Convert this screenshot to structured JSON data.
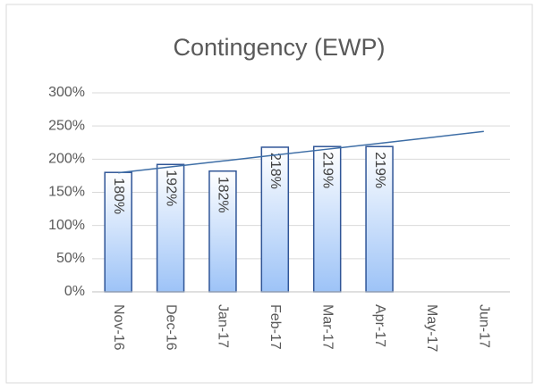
{
  "chart_data": {
    "type": "bar",
    "title": "Contingency (EWP)",
    "categories": [
      "Nov-16",
      "Dec-16",
      "Jan-17",
      "Feb-17",
      "Mar-17",
      "Apr-17",
      "May-17",
      "Jun-17"
    ],
    "values": [
      180,
      192,
      182,
      218,
      219,
      219,
      null,
      null
    ],
    "value_labels": [
      "180%",
      "192%",
      "182%",
      "218%",
      "219%",
      "219%",
      null,
      null
    ],
    "color": "#9dc3f7",
    "trend": {
      "color": "#3e6ea6",
      "values": [
        179.4,
        188.3,
        197.2,
        206.1,
        215.0,
        223.9,
        232.8,
        241.8
      ]
    },
    "ylim": [
      0,
      300
    ],
    "yticks": [
      {
        "value": 0,
        "label": "0%"
      },
      {
        "value": 50,
        "label": "50%"
      },
      {
        "value": 100,
        "label": "100%"
      },
      {
        "value": 150,
        "label": "150%"
      },
      {
        "value": 200,
        "label": "200%"
      },
      {
        "value": 250,
        "label": "250%"
      },
      {
        "value": 300,
        "label": "300%"
      }
    ],
    "grid": true
  }
}
